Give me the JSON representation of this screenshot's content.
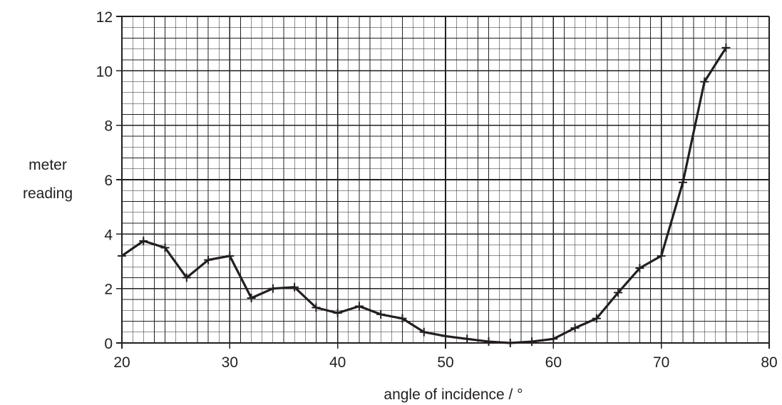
{
  "chart_data": {
    "type": "line",
    "xlabel": "angle of incidence / °",
    "ylabel_lines": [
      "meter",
      "reading"
    ],
    "xlim": [
      20,
      80
    ],
    "ylim": [
      0,
      12
    ],
    "x_major_step": 10,
    "y_major_step": 2,
    "x_minor_step": 1,
    "y_minor_step": 0.4,
    "grid": true,
    "x_ticks": [
      "20",
      "30",
      "40",
      "50",
      "60",
      "70",
      "80"
    ],
    "y_ticks": [
      "0",
      "2",
      "4",
      "6",
      "8",
      "10",
      "12"
    ],
    "colors": {
      "line": "#231f20",
      "grid": "#231f20",
      "text": "#231f20"
    },
    "series": [
      {
        "x": [
          20,
          22,
          24,
          26,
          28,
          30,
          32,
          34,
          36,
          38,
          40,
          42,
          44,
          46,
          48,
          50,
          52,
          54,
          56,
          58,
          60,
          62,
          64,
          66,
          68,
          70,
          72,
          74,
          76
        ],
        "y": [
          3.2,
          3.75,
          3.5,
          2.4,
          3.05,
          3.2,
          1.65,
          2.0,
          2.05,
          1.3,
          1.1,
          1.35,
          1.05,
          0.9,
          0.4,
          0.25,
          0.15,
          0.05,
          0.0,
          0.05,
          0.15,
          0.55,
          0.9,
          1.85,
          2.75,
          3.2,
          5.9,
          9.6,
          10.85
        ]
      }
    ]
  }
}
